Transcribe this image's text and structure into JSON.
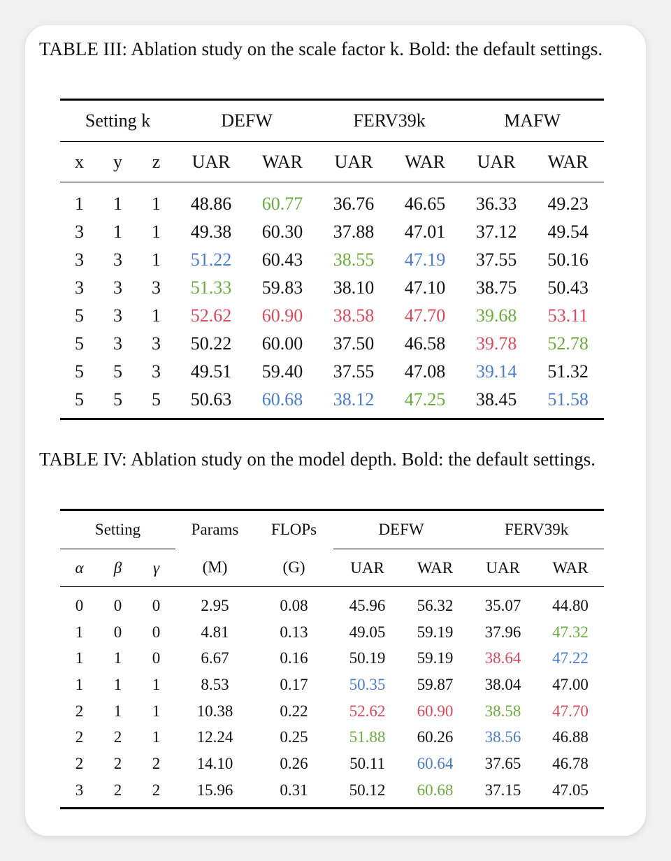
{
  "colors": {
    "best": "#d9495a",
    "second": "#6aab3f",
    "third": "#4a7cc9"
  },
  "table3": {
    "caption": "TABLE III: Ablation study on the scale factor k. Bold: the default settings.",
    "group_headers": [
      "Setting k",
      "DEFW",
      "FERV39k",
      "MAFW"
    ],
    "sub_headers": [
      "x",
      "y",
      "z",
      "UAR",
      "WAR",
      "UAR",
      "WAR",
      "UAR",
      "WAR"
    ],
    "rows": [
      {
        "bold": false,
        "cells": [
          "1",
          "1",
          "1",
          "48.86",
          "60.77",
          "36.76",
          "46.65",
          "36.33",
          "49.23"
        ],
        "colors": [
          "",
          "",
          "",
          "",
          "green",
          "",
          "",
          "",
          ""
        ]
      },
      {
        "bold": false,
        "cells": [
          "3",
          "1",
          "1",
          "49.38",
          "60.30",
          "37.88",
          "47.01",
          "37.12",
          "49.54"
        ],
        "colors": [
          "",
          "",
          "",
          "",
          "",
          "",
          "",
          "",
          ""
        ]
      },
      {
        "bold": false,
        "cells": [
          "3",
          "3",
          "1",
          "51.22",
          "60.43",
          "38.55",
          "47.19",
          "37.55",
          "50.16"
        ],
        "colors": [
          "",
          "",
          "",
          "blue",
          "",
          "green",
          "blue",
          "",
          ""
        ]
      },
      {
        "bold": false,
        "cells": [
          "3",
          "3",
          "3",
          "51.33",
          "59.83",
          "38.10",
          "47.10",
          "38.75",
          "50.43"
        ],
        "colors": [
          "",
          "",
          "",
          "green",
          "",
          "",
          "",
          "",
          ""
        ]
      },
      {
        "bold": true,
        "cells": [
          "5",
          "3",
          "1",
          "52.62",
          "60.90",
          "38.58",
          "47.70",
          "39.68",
          "53.11"
        ],
        "colors": [
          "",
          "",
          "",
          "red",
          "red",
          "red",
          "red",
          "green",
          "red"
        ]
      },
      {
        "bold": false,
        "cells": [
          "5",
          "3",
          "3",
          "50.22",
          "60.00",
          "37.50",
          "46.58",
          "39.78",
          "52.78"
        ],
        "colors": [
          "",
          "",
          "",
          "",
          "",
          "",
          "",
          "red",
          "green"
        ]
      },
      {
        "bold": false,
        "cells": [
          "5",
          "5",
          "3",
          "49.51",
          "59.40",
          "37.55",
          "47.08",
          "39.14",
          "51.32"
        ],
        "colors": [
          "",
          "",
          "",
          "",
          "",
          "",
          "",
          "blue",
          ""
        ]
      },
      {
        "bold": false,
        "cells": [
          "5",
          "5",
          "5",
          "50.63",
          "60.68",
          "38.12",
          "47.25",
          "38.45",
          "51.58"
        ],
        "colors": [
          "",
          "",
          "",
          "",
          "blue",
          "blue",
          "green",
          "",
          "blue"
        ]
      }
    ]
  },
  "table4": {
    "caption": "TABLE IV: Ablation study on the model depth. Bold: the default settings.",
    "group_headers": [
      "Setting",
      "Params",
      "FLOPs",
      "DEFW",
      "FERV39k"
    ],
    "sub_headers": [
      "α",
      "β",
      "γ",
      "(M)",
      "(G)",
      "UAR",
      "WAR",
      "UAR",
      "WAR"
    ],
    "rows": [
      {
        "bold": false,
        "cells": [
          "0",
          "0",
          "0",
          "2.95",
          "0.08",
          "45.96",
          "56.32",
          "35.07",
          "44.80"
        ],
        "colors": [
          "",
          "",
          "",
          "",
          "",
          "",
          "",
          "",
          ""
        ]
      },
      {
        "bold": false,
        "cells": [
          "1",
          "0",
          "0",
          "4.81",
          "0.13",
          "49.05",
          "59.19",
          "37.96",
          "47.32"
        ],
        "colors": [
          "",
          "",
          "",
          "",
          "",
          "",
          "",
          "",
          "green"
        ]
      },
      {
        "bold": false,
        "cells": [
          "1",
          "1",
          "0",
          "6.67",
          "0.16",
          "50.19",
          "59.19",
          "38.64",
          "47.22"
        ],
        "colors": [
          "",
          "",
          "",
          "",
          "",
          "",
          "",
          "red",
          "blue"
        ]
      },
      {
        "bold": false,
        "cells": [
          "1",
          "1",
          "1",
          "8.53",
          "0.17",
          "50.35",
          "59.87",
          "38.04",
          "47.00"
        ],
        "colors": [
          "",
          "",
          "",
          "",
          "",
          "blue",
          "",
          "",
          ""
        ]
      },
      {
        "bold": true,
        "cells": [
          "2",
          "1",
          "1",
          "10.38",
          "0.22",
          "52.62",
          "60.90",
          "38.58",
          "47.70"
        ],
        "colors": [
          "",
          "",
          "",
          "",
          "",
          "red",
          "red",
          "green",
          "red"
        ]
      },
      {
        "bold": false,
        "cells": [
          "2",
          "2",
          "1",
          "12.24",
          "0.25",
          "51.88",
          "60.26",
          "38.56",
          "46.88"
        ],
        "colors": [
          "",
          "",
          "",
          "",
          "",
          "green",
          "",
          "blue",
          ""
        ]
      },
      {
        "bold": false,
        "cells": [
          "2",
          "2",
          "2",
          "14.10",
          "0.26",
          "50.11",
          "60.64",
          "37.65",
          "46.78"
        ],
        "colors": [
          "",
          "",
          "",
          "",
          "",
          "",
          "blue",
          "",
          ""
        ]
      },
      {
        "bold": false,
        "cells": [
          "3",
          "2",
          "2",
          "15.96",
          "0.31",
          "50.12",
          "60.68",
          "37.15",
          "47.05"
        ],
        "colors": [
          "",
          "",
          "",
          "",
          "",
          "",
          "green",
          "",
          ""
        ]
      }
    ]
  }
}
